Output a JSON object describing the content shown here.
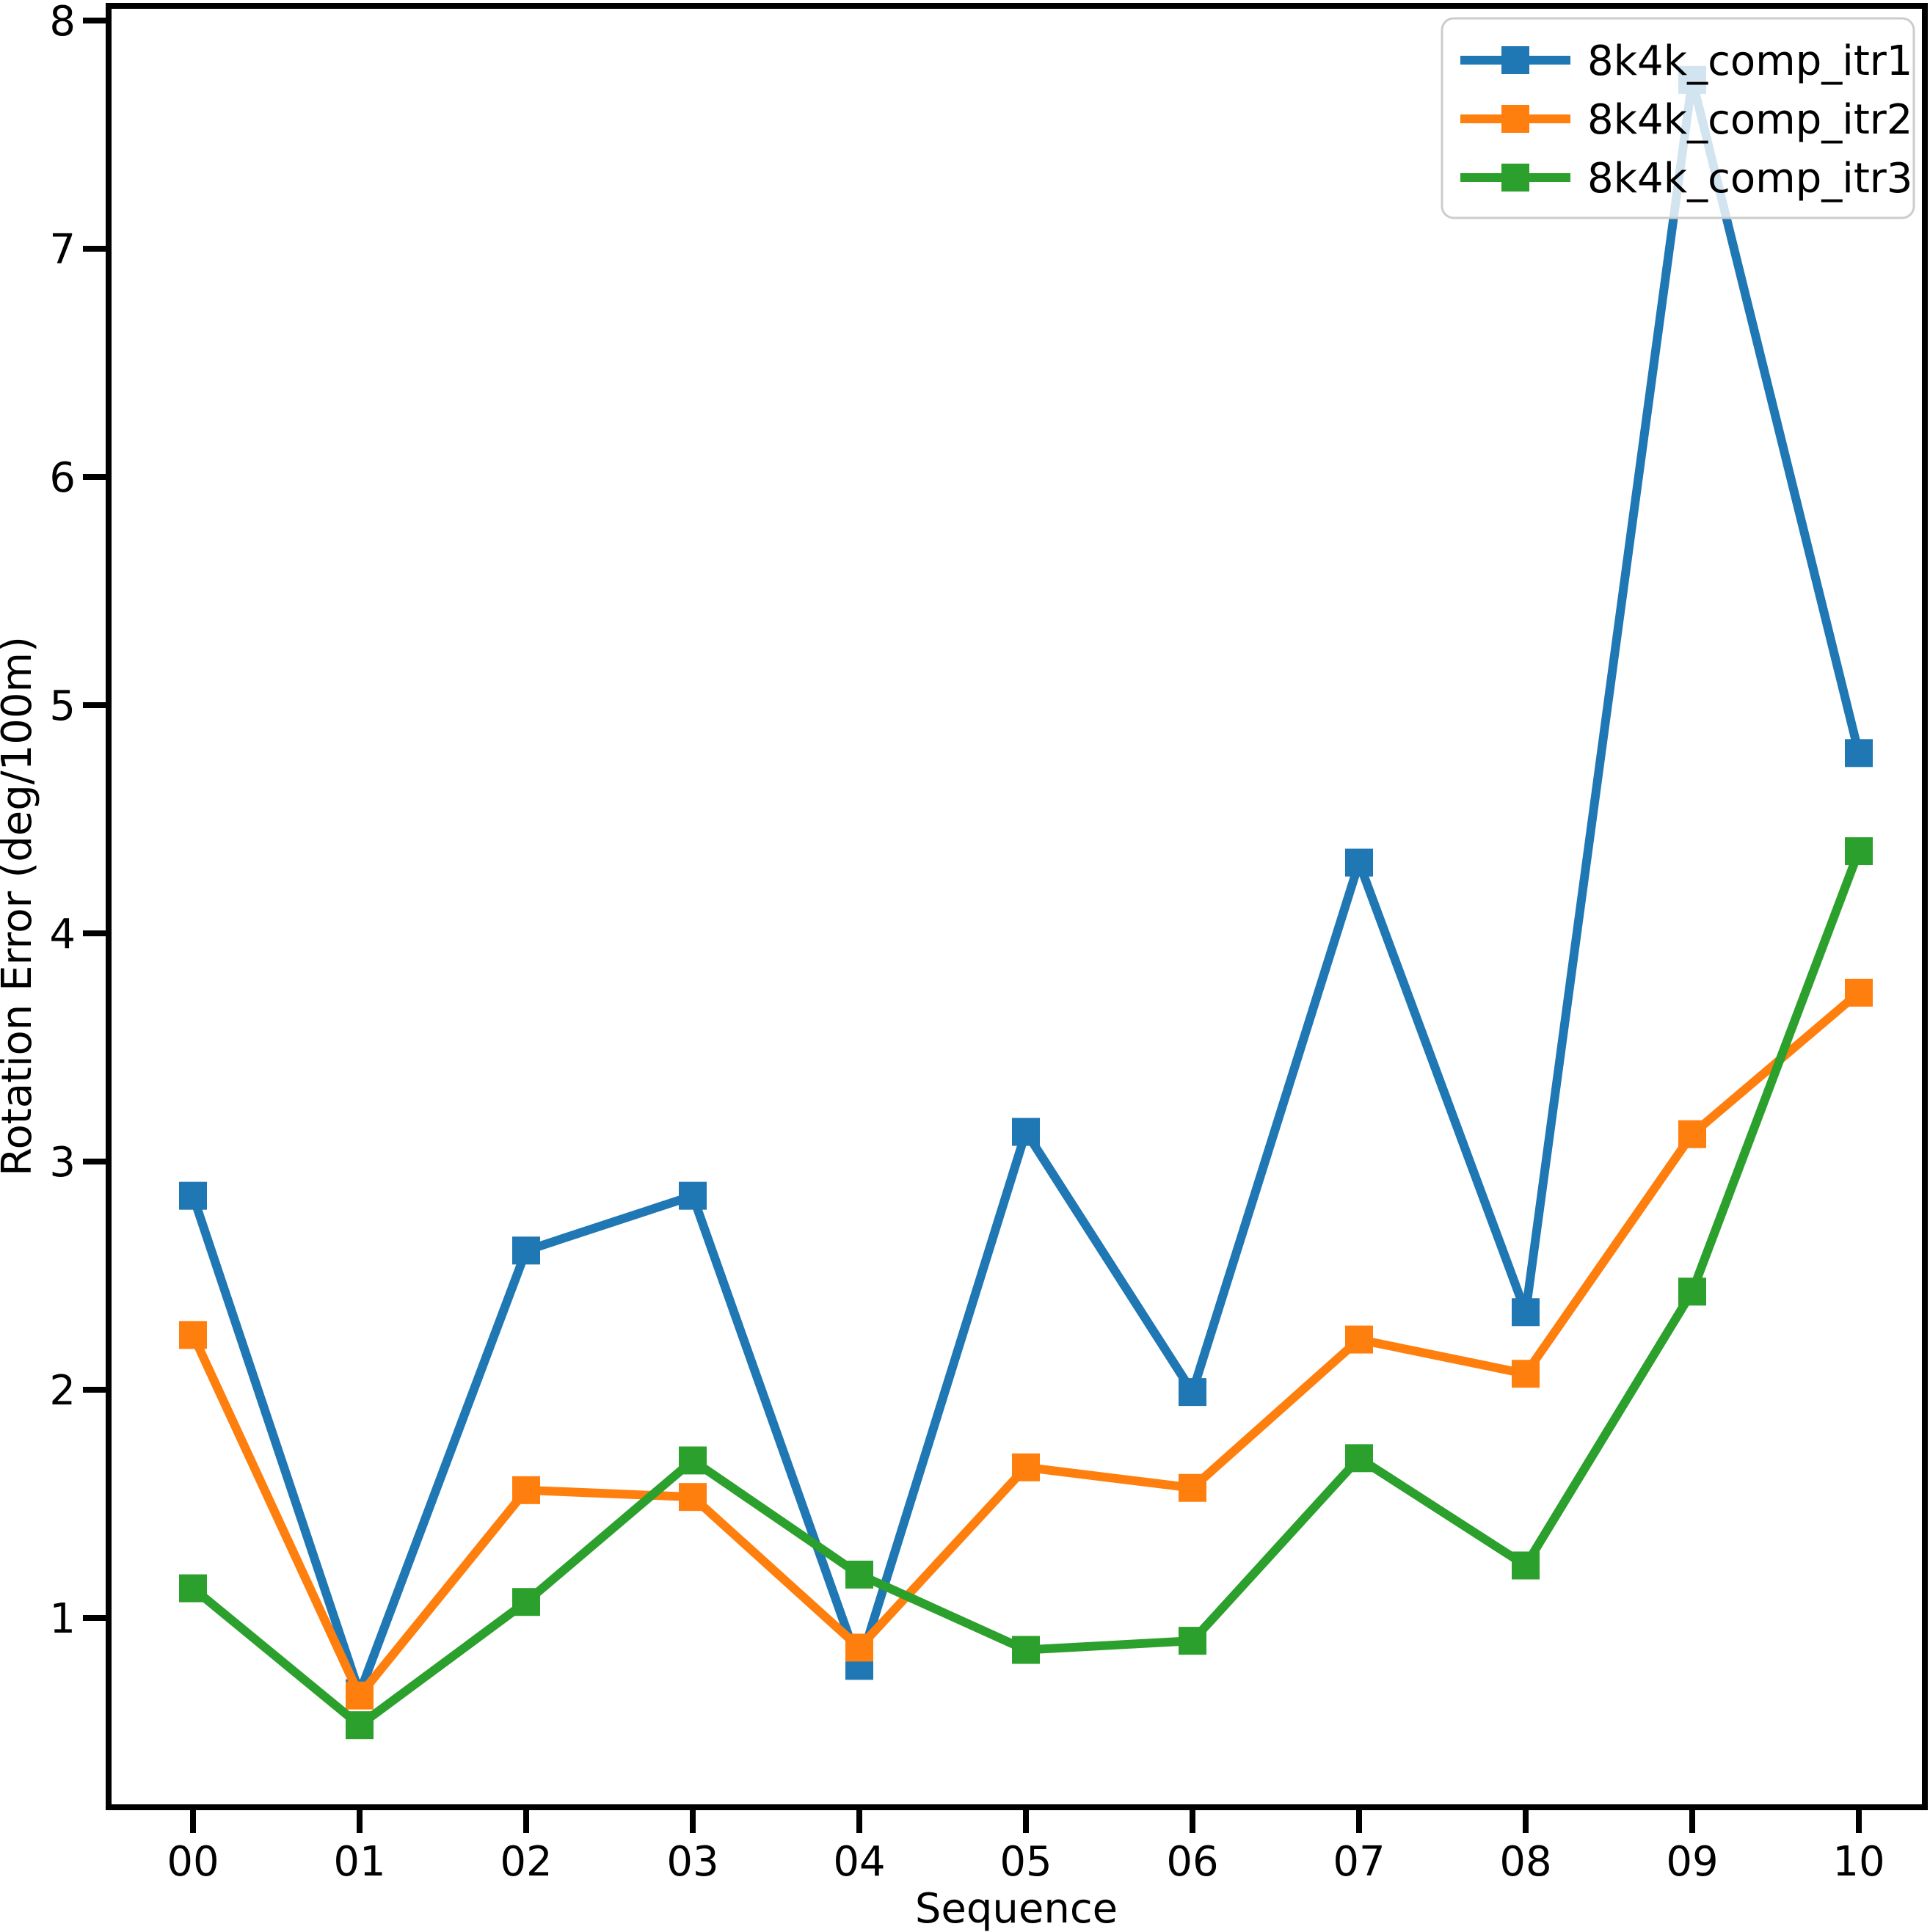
{
  "chart_data": {
    "type": "line",
    "title": "",
    "xlabel": "Sequence",
    "ylabel": "Rotation Error (deg/100m)",
    "x_categories": [
      "00",
      "01",
      "02",
      "03",
      "04",
      "05",
      "06",
      "07",
      "08",
      "09",
      "10"
    ],
    "y_ticks": [
      1,
      2,
      3,
      4,
      5,
      6,
      7,
      8
    ],
    "ylim": [
      0.17,
      8.07
    ],
    "xlim_units": [
      -0.5,
      10.5
    ],
    "grid": false,
    "legend_position": "upper right",
    "marker": "square",
    "axis_color": "#000000",
    "legend_border_color": "#cccccc",
    "legend_fill_opacity": 0.8,
    "series": [
      {
        "name": "8k4k_comp_itr1",
        "color": "#1f77b4",
        "values": [
          2.85,
          0.67,
          2.61,
          2.85,
          0.79,
          3.13,
          1.99,
          4.31,
          2.34,
          7.74,
          4.79
        ]
      },
      {
        "name": "8k4k_comp_itr2",
        "color": "#ff7f0e",
        "values": [
          2.24,
          0.66,
          1.56,
          1.53,
          0.87,
          1.66,
          1.57,
          2.22,
          2.07,
          3.12,
          3.74
        ]
      },
      {
        "name": "8k4k_comp_itr3",
        "color": "#2ca02c",
        "values": [
          1.13,
          0.53,
          1.07,
          1.69,
          1.19,
          0.86,
          0.9,
          1.7,
          1.23,
          2.43,
          4.36
        ]
      }
    ]
  }
}
